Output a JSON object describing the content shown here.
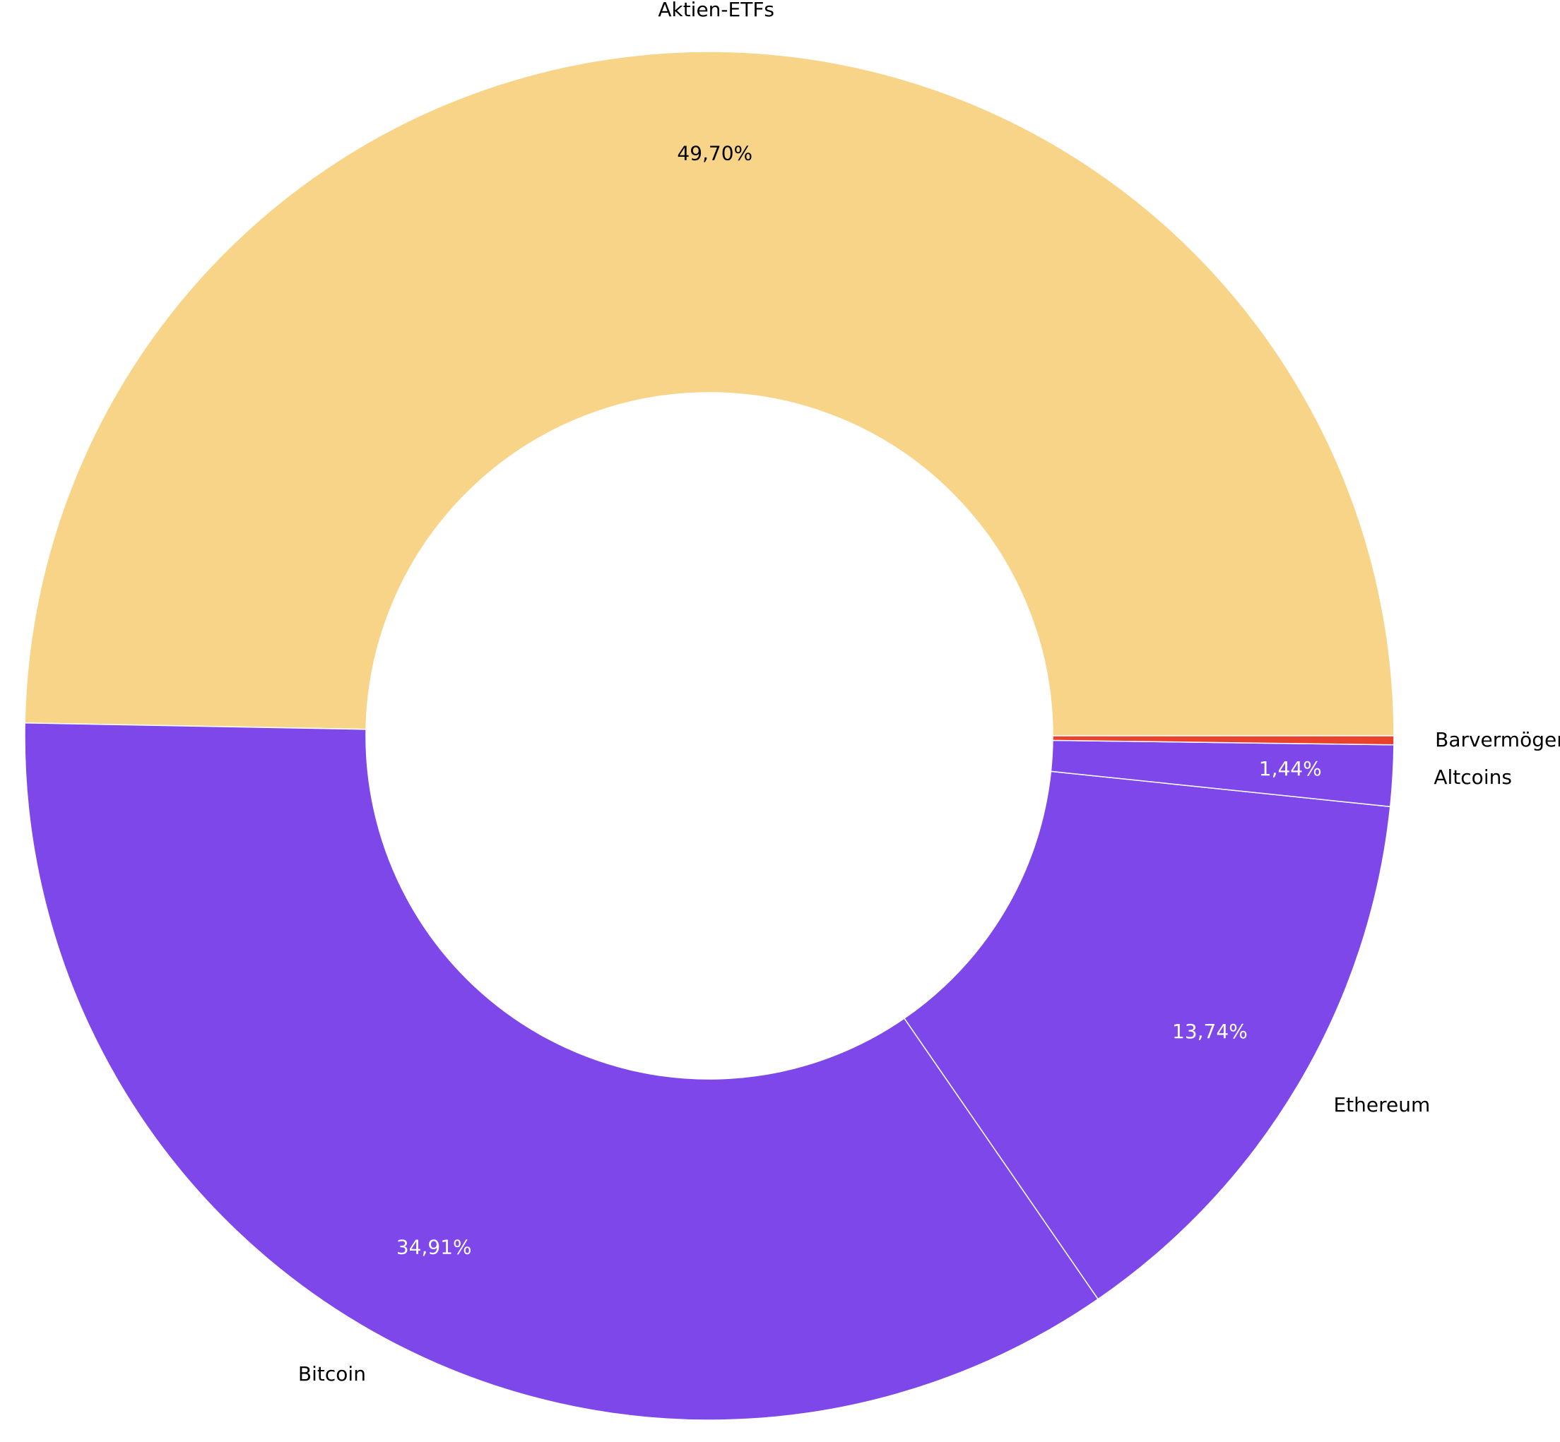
{
  "chart_data": {
    "type": "donut",
    "categories": [
      "Aktien-ETFs",
      "Bitcoin",
      "Ethereum",
      "Altcoins",
      "Barvermögen"
    ],
    "values": [
      49.7,
      34.91,
      13.74,
      1.44,
      0.21
    ],
    "value_labels": [
      "49,70%",
      "34,91%",
      "13,74%",
      "1,44%",
      null
    ],
    "colors": [
      "#f8d488",
      "#7e47ea",
      "#7e47ea",
      "#7e47ea",
      "#e8412c"
    ],
    "label_colors": [
      "#000000",
      "#ffffff",
      "#ffffff",
      "#ffffff",
      "#ffffff"
    ]
  }
}
